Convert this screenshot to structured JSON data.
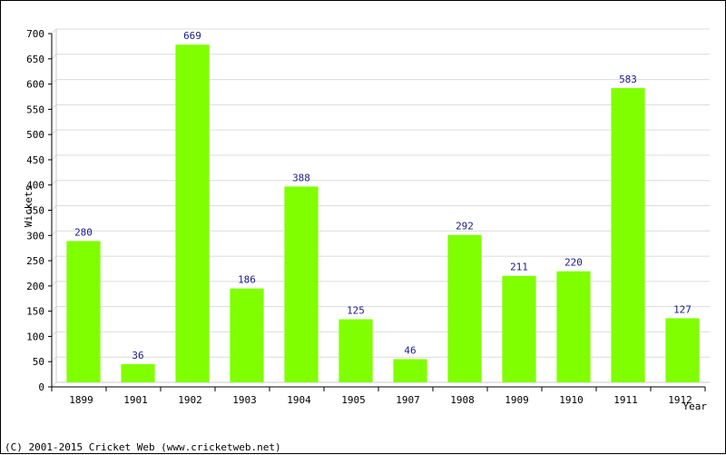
{
  "chart_data": {
    "type": "bar",
    "categories": [
      "1899",
      "1901",
      "1902",
      "1903",
      "1904",
      "1905",
      "1907",
      "1908",
      "1909",
      "1910",
      "1911",
      "1912"
    ],
    "values": [
      280,
      36,
      669,
      186,
      388,
      125,
      46,
      292,
      211,
      220,
      583,
      127
    ],
    "title": "",
    "xlabel": "Year",
    "ylabel": "Wickets",
    "ylim": [
      0,
      700
    ],
    "yticks": [
      0,
      50,
      100,
      150,
      200,
      250,
      300,
      350,
      400,
      450,
      500,
      550,
      600,
      650,
      700
    ],
    "grid": true,
    "legend": "none",
    "bar_color": "#80ff00",
    "label_color": "#1a1a8a"
  },
  "footer": {
    "text": "(C) 2001-2015 Cricket Web (www.cricketweb.net)"
  }
}
